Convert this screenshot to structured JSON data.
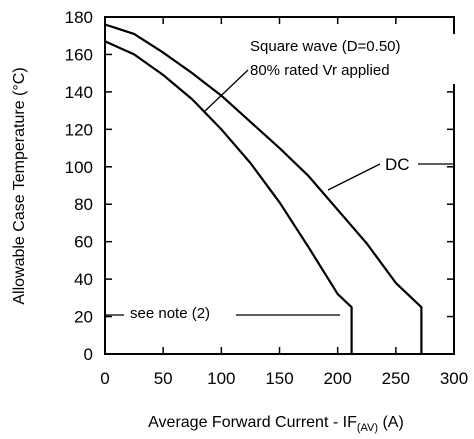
{
  "chart_data": {
    "type": "line",
    "xlabel": "Average Forward Current - IF",
    "xlabel_sub": "(AV)",
    "xlabel_unit": " (A)",
    "ylabel": "Allowable Case Temperature  (°C)",
    "xlim": [
      0,
      300
    ],
    "ylim": [
      0,
      180
    ],
    "x_ticks": [
      "0",
      "50",
      "100",
      "150",
      "200",
      "250",
      "300"
    ],
    "y_ticks": [
      "0",
      "20",
      "40",
      "60",
      "80",
      "100",
      "120",
      "140",
      "160",
      "180"
    ],
    "grid": false,
    "series": [
      {
        "name": "Square wave (D=0.50) 80% rated Vr applied",
        "x": [
          0,
          25,
          50,
          75,
          100,
          125,
          150,
          175,
          200,
          212,
          212
        ],
        "y": [
          167,
          160,
          149,
          136,
          120,
          102,
          81,
          57,
          32,
          25,
          0
        ]
      },
      {
        "name": "DC",
        "x": [
          0,
          25,
          50,
          75,
          100,
          125,
          150,
          175,
          200,
          225,
          250,
          272,
          272
        ],
        "y": [
          176,
          171,
          161,
          150,
          138,
          124,
          110,
          95,
          77,
          59,
          38,
          25,
          0
        ]
      }
    ],
    "annotations": [
      {
        "lines": [
          "Square wave (D=0.50)",
          "80% rated Vr applied"
        ]
      },
      {
        "text": "DC"
      },
      {
        "text": "see note (2)"
      }
    ]
  }
}
